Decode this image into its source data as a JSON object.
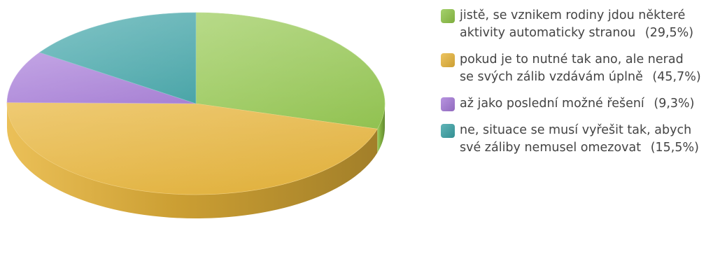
{
  "chart_data": {
    "type": "pie",
    "style": "3d",
    "title": "",
    "categories": [
      "jistě, se vznikem rodiny jdou některé aktivity automaticky stranou",
      "pokud je to nutné tak ano, ale nerad se svých zálib vzdávám úplně",
      "až jako poslední možné řešení",
      "ne, situace se musí vyřešit tak, abych své záliby nemusel omezovat"
    ],
    "values": [
      29.5,
      45.7,
      9.3,
      15.5
    ],
    "value_labels": [
      "(29,5%)",
      "(45,7%)",
      "(9,3%)",
      "(15,5%)"
    ],
    "colors": [
      "#8fc547",
      "#e8b53a",
      "#a579d8",
      "#3aa3a6"
    ],
    "legend_position": "right"
  }
}
